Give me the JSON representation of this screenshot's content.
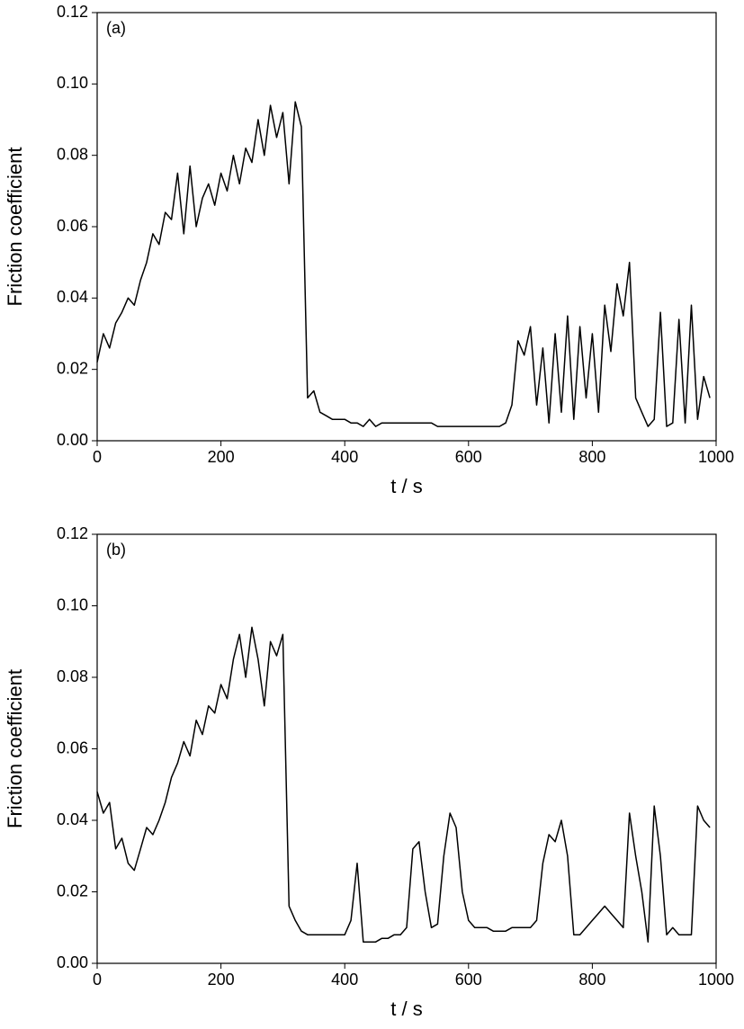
{
  "chart_data": [
    {
      "type": "line",
      "annotation": "(a)",
      "xlabel": "t / s",
      "ylabel": "Friction coefficient",
      "color": "#000000",
      "xlim": [
        0,
        1000
      ],
      "xticks": [
        0,
        200,
        400,
        600,
        800,
        1000
      ],
      "ylim": [
        0,
        0.12
      ],
      "yticks": [
        {
          "value": 0,
          "label": "0.00"
        },
        {
          "value": 0.02,
          "label": "0.02"
        },
        {
          "value": 0.04,
          "label": "0.04"
        },
        {
          "value": 0.06,
          "label": "0.06"
        },
        {
          "value": 0.08,
          "label": "0.08"
        },
        {
          "value": 0.1,
          "label": "0.10"
        },
        {
          "value": 0.12,
          "label": "0.12"
        }
      ],
      "x": [
        0,
        10,
        20,
        30,
        40,
        50,
        60,
        70,
        80,
        90,
        100,
        110,
        120,
        130,
        140,
        150,
        160,
        170,
        180,
        190,
        200,
        210,
        220,
        230,
        240,
        250,
        260,
        270,
        280,
        290,
        300,
        310,
        320,
        330,
        340,
        350,
        360,
        370,
        380,
        390,
        400,
        410,
        420,
        430,
        440,
        450,
        460,
        470,
        480,
        490,
        500,
        510,
        520,
        530,
        540,
        550,
        560,
        570,
        580,
        590,
        600,
        610,
        620,
        630,
        640,
        650,
        660,
        670,
        680,
        690,
        700,
        710,
        720,
        730,
        740,
        750,
        760,
        770,
        780,
        790,
        800,
        810,
        820,
        830,
        840,
        850,
        860,
        870,
        880,
        890,
        900,
        910,
        920,
        930,
        940,
        950,
        960,
        970,
        980,
        990
      ],
      "values": [
        0.022,
        0.03,
        0.026,
        0.033,
        0.036,
        0.04,
        0.038,
        0.045,
        0.05,
        0.058,
        0.055,
        0.064,
        0.062,
        0.075,
        0.058,
        0.077,
        0.06,
        0.068,
        0.072,
        0.066,
        0.075,
        0.07,
        0.08,
        0.072,
        0.082,
        0.078,
        0.09,
        0.08,
        0.094,
        0.085,
        0.092,
        0.072,
        0.095,
        0.088,
        0.012,
        0.014,
        0.008,
        0.007,
        0.006,
        0.006,
        0.006,
        0.005,
        0.005,
        0.004,
        0.006,
        0.004,
        0.005,
        0.005,
        0.005,
        0.005,
        0.005,
        0.005,
        0.005,
        0.005,
        0.005,
        0.004,
        0.004,
        0.004,
        0.004,
        0.004,
        0.004,
        0.004,
        0.004,
        0.004,
        0.004,
        0.004,
        0.005,
        0.01,
        0.028,
        0.024,
        0.032,
        0.01,
        0.026,
        0.005,
        0.03,
        0.008,
        0.035,
        0.006,
        0.032,
        0.012,
        0.03,
        0.008,
        0.038,
        0.025,
        0.044,
        0.035,
        0.05,
        0.012,
        0.008,
        0.004,
        0.006,
        0.036,
        0.004,
        0.005,
        0.034,
        0.005,
        0.038,
        0.006,
        0.018,
        0.012
      ]
    },
    {
      "type": "line",
      "annotation": "(b)",
      "xlabel": "t / s",
      "ylabel": "Friction coefficient",
      "color": "#000000",
      "xlim": [
        0,
        1000
      ],
      "xticks": [
        0,
        200,
        400,
        600,
        800,
        1000
      ],
      "ylim": [
        0,
        0.12
      ],
      "yticks": [
        {
          "value": 0,
          "label": "0.00"
        },
        {
          "value": 0.02,
          "label": "0.02"
        },
        {
          "value": 0.04,
          "label": "0.04"
        },
        {
          "value": 0.06,
          "label": "0.06"
        },
        {
          "value": 0.08,
          "label": "0.08"
        },
        {
          "value": 0.1,
          "label": "0.10"
        },
        {
          "value": 0.12,
          "label": "0.12"
        }
      ],
      "x": [
        0,
        10,
        20,
        30,
        40,
        50,
        60,
        70,
        80,
        90,
        100,
        110,
        120,
        130,
        140,
        150,
        160,
        170,
        180,
        190,
        200,
        210,
        220,
        230,
        240,
        250,
        260,
        270,
        280,
        290,
        300,
        310,
        320,
        330,
        340,
        350,
        360,
        370,
        380,
        390,
        400,
        410,
        420,
        430,
        440,
        450,
        460,
        470,
        480,
        490,
        500,
        510,
        520,
        530,
        540,
        550,
        560,
        570,
        580,
        590,
        600,
        610,
        620,
        630,
        640,
        650,
        660,
        670,
        680,
        690,
        700,
        710,
        720,
        730,
        740,
        750,
        760,
        770,
        780,
        790,
        800,
        810,
        820,
        830,
        840,
        850,
        860,
        870,
        880,
        890,
        900,
        910,
        920,
        930,
        940,
        950,
        960,
        970,
        980,
        990
      ],
      "values": [
        0.048,
        0.042,
        0.045,
        0.032,
        0.035,
        0.028,
        0.026,
        0.032,
        0.038,
        0.036,
        0.04,
        0.045,
        0.052,
        0.056,
        0.062,
        0.058,
        0.068,
        0.064,
        0.072,
        0.07,
        0.078,
        0.074,
        0.085,
        0.092,
        0.08,
        0.094,
        0.085,
        0.072,
        0.09,
        0.086,
        0.092,
        0.016,
        0.012,
        0.009,
        0.008,
        0.008,
        0.008,
        0.008,
        0.008,
        0.008,
        0.008,
        0.012,
        0.028,
        0.006,
        0.006,
        0.006,
        0.007,
        0.007,
        0.008,
        0.008,
        0.01,
        0.032,
        0.034,
        0.02,
        0.01,
        0.011,
        0.03,
        0.042,
        0.038,
        0.02,
        0.012,
        0.01,
        0.01,
        0.01,
        0.009,
        0.009,
        0.009,
        0.01,
        0.01,
        0.01,
        0.01,
        0.012,
        0.028,
        0.036,
        0.034,
        0.04,
        0.03,
        0.008,
        0.008,
        0.01,
        0.012,
        0.014,
        0.016,
        0.014,
        0.012,
        0.01,
        0.042,
        0.03,
        0.02,
        0.006,
        0.044,
        0.03,
        0.008,
        0.01,
        0.008,
        0.008,
        0.008,
        0.044,
        0.04,
        0.038
      ]
    }
  ]
}
